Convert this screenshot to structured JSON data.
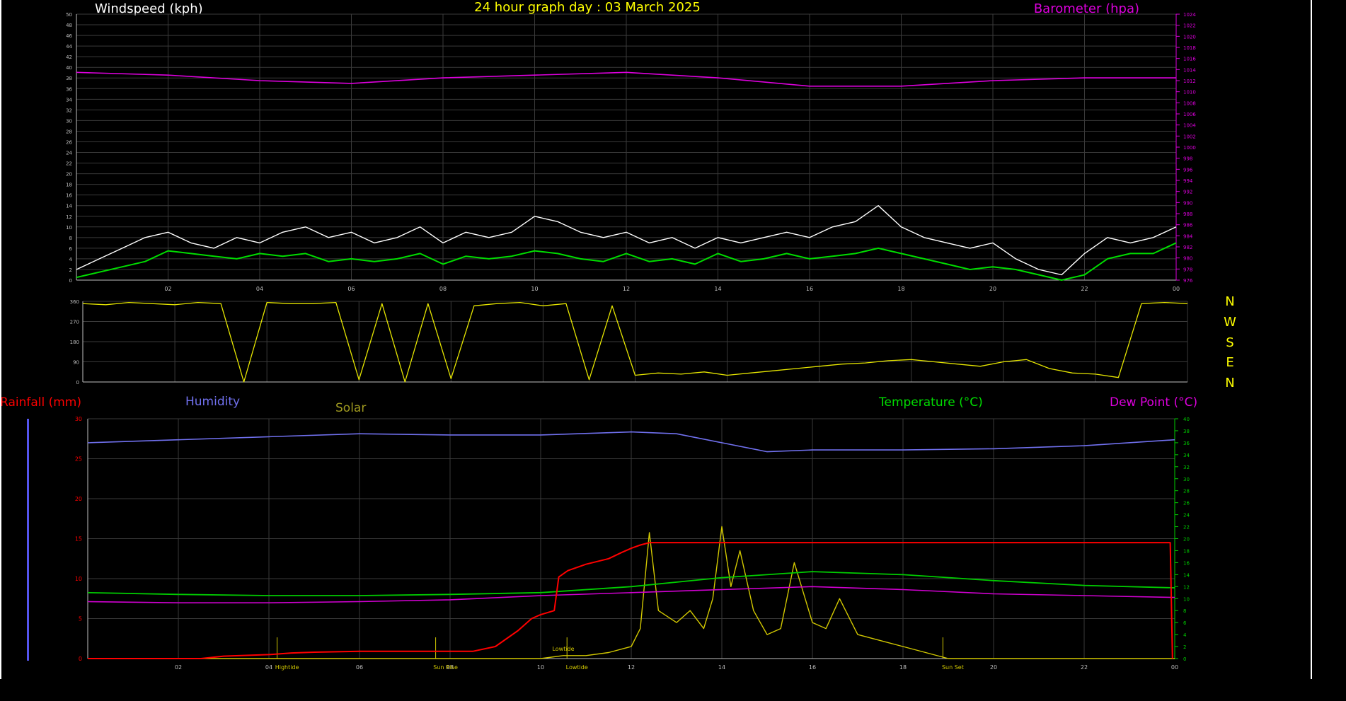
{
  "header": {
    "windspeed_title": "Windspeed (kph)",
    "chart_title": "24 hour graph day : 03 March 2025",
    "barometer_title": "Barometer (hpa)"
  },
  "lower_header": {
    "rainfall_title": "Rainfall (mm)",
    "humidity_title": "Humidity",
    "solar_title": "Solar",
    "temperature_title": "Temperature (°C)",
    "dewpoint_title": "Dew Point (°C)"
  },
  "direction_labels": [
    "N",
    "W",
    "S",
    "E",
    "N"
  ],
  "colors": {
    "background": "#000000",
    "grid": "#3a3a3a",
    "axis": "#bfbfbf",
    "windspeed": "#ffffff",
    "wind_avg": "#00dd00",
    "barometer": "#dd00dd",
    "direction": "#e6e600",
    "rainfall": "#ff0000",
    "humidity": "#7070ee",
    "solar": "#d2c800",
    "temperature": "#00cc00",
    "dewpoint": "#d000d0",
    "title_yellow": "#ffff00"
  },
  "chart_data": [
    {
      "type": "line",
      "name_key": "wind",
      "title": "Windspeed (kph)",
      "secondary_title": "Barometer (hpa)",
      "xlim": [
        0,
        24
      ],
      "x_ticks": [
        "02",
        "04",
        "06",
        "08",
        "10",
        "12",
        "14",
        "16",
        "18",
        "20",
        "22",
        "00"
      ],
      "y_left": {
        "min": 0,
        "max": 50,
        "step": 2
      },
      "y_right": {
        "min": 976,
        "max": 1024,
        "step": 2
      },
      "series": [
        {
          "name": "Windspeed",
          "axis": "left",
          "x": [
            0.0,
            0.5,
            1.0,
            1.5,
            2.0,
            2.5,
            3.0,
            3.5,
            4.0,
            4.5,
            5.0,
            5.5,
            6.0,
            6.5,
            7.0,
            7.5,
            8.0,
            8.5,
            9.0,
            9.5,
            10.0,
            10.5,
            11.0,
            11.5,
            12.0,
            12.5,
            13.0,
            13.5,
            14.0,
            14.5,
            15.0,
            15.5,
            16.0,
            16.5,
            17.0,
            17.5,
            18.0,
            18.5,
            19.0,
            19.5,
            20.0,
            20.5,
            21.0,
            21.5,
            22.0,
            22.5,
            23.0,
            23.5,
            24.0
          ],
          "y": [
            2,
            4,
            6,
            8,
            9,
            7,
            6,
            8,
            7,
            9,
            10,
            8,
            9,
            7,
            8,
            10,
            7,
            9,
            8,
            9,
            12,
            11,
            9,
            8,
            9,
            7,
            8,
            6,
            8,
            7,
            8,
            9,
            8,
            10,
            11,
            14,
            10,
            8,
            7,
            6,
            7,
            4,
            2,
            1,
            5,
            8,
            7,
            8,
            10
          ]
        },
        {
          "name": "Wind average",
          "axis": "left",
          "x": [
            0.0,
            0.5,
            1.0,
            1.5,
            2.0,
            2.5,
            3.0,
            3.5,
            4.0,
            4.5,
            5.0,
            5.5,
            6.0,
            6.5,
            7.0,
            7.5,
            8.0,
            8.5,
            9.0,
            9.5,
            10.0,
            10.5,
            11.0,
            11.5,
            12.0,
            12.5,
            13.0,
            13.5,
            14.0,
            14.5,
            15.0,
            15.5,
            16.0,
            16.5,
            17.0,
            17.5,
            18.0,
            18.5,
            19.0,
            19.5,
            20.0,
            20.5,
            21.0,
            21.5,
            22.0,
            22.5,
            23.0,
            23.5,
            24.0
          ],
          "y": [
            0.5,
            1.5,
            2.5,
            3.5,
            5.5,
            5,
            4.5,
            4,
            5,
            4.5,
            5,
            3.5,
            4,
            3.5,
            4,
            5,
            3,
            4.5,
            4,
            4.5,
            5.5,
            5,
            4,
            3.5,
            5,
            3.5,
            4,
            3,
            5,
            3.5,
            4,
            5,
            4,
            4.5,
            5,
            6,
            5,
            4,
            3,
            2,
            2.5,
            2,
            1,
            0,
            1,
            4,
            5,
            5,
            7
          ]
        },
        {
          "name": "Barometer",
          "axis": "right",
          "x": [
            0,
            2,
            4,
            6,
            8,
            10,
            12,
            14,
            16,
            18,
            20,
            22,
            24
          ],
          "y": [
            1013.5,
            1013,
            1012,
            1011.5,
            1012.5,
            1013,
            1013.5,
            1012.5,
            1011,
            1011,
            1012,
            1012.5,
            1012.5
          ]
        }
      ]
    },
    {
      "type": "line",
      "name_key": "direction",
      "xlim": [
        0,
        24
      ],
      "y_left": {
        "min": 0,
        "max": 360,
        "ticks": [
          0,
          90,
          180,
          270,
          360
        ]
      },
      "series": [
        {
          "name": "Wind direction",
          "x": [
            0.0,
            0.5,
            1.0,
            1.5,
            2.0,
            2.5,
            3.0,
            3.5,
            4.0,
            4.5,
            5.0,
            5.5,
            6.0,
            6.5,
            7.0,
            7.5,
            8.0,
            8.5,
            9.0,
            9.5,
            10.0,
            10.5,
            11.0,
            11.5,
            12.0,
            12.5,
            13.0,
            13.5,
            14.0,
            14.5,
            15.0,
            15.5,
            16.0,
            16.5,
            17.0,
            17.5,
            18.0,
            18.5,
            19.0,
            19.5,
            20.0,
            20.5,
            21.0,
            21.5,
            22.0,
            22.5,
            23.0,
            23.5,
            24.0
          ],
          "y": [
            350,
            345,
            355,
            350,
            345,
            355,
            350,
            0,
            355,
            350,
            350,
            355,
            10,
            350,
            0,
            350,
            15,
            340,
            350,
            355,
            340,
            350,
            10,
            340,
            30,
            40,
            35,
            45,
            30,
            40,
            50,
            60,
            70,
            80,
            85,
            95,
            100,
            90,
            80,
            70,
            90,
            100,
            60,
            40,
            35,
            20,
            350,
            355,
            350
          ]
        }
      ]
    },
    {
      "type": "line",
      "name_key": "atmos",
      "x_ticks": [
        "02",
        "04",
        "06",
        "08",
        "10",
        "12",
        "14",
        "16",
        "18",
        "20",
        "22",
        "00"
      ],
      "annotations": [
        {
          "label": "Hightide",
          "x": 4.4
        },
        {
          "label": "Sun Rise",
          "x": 7.9
        },
        {
          "label": "Lowtide",
          "x": 10.8
        },
        {
          "label": "Lowtide",
          "x": 10.5,
          "y": 0.8
        },
        {
          "label": "Sun Set",
          "x": 19.1
        }
      ],
      "xlim": [
        0,
        24
      ],
      "y_left": {
        "min": 0,
        "max": 30,
        "ticks": [
          0,
          5,
          10,
          15,
          20,
          25,
          30
        ]
      },
      "y_right": {
        "min": 0,
        "max": 40,
        "step": 2
      },
      "series": [
        {
          "name": "Rainfall",
          "axis": "left",
          "x": [
            0,
            2.5,
            3.0,
            4.0,
            4.5,
            5.0,
            6.0,
            7.0,
            8.0,
            8.5,
            9.0,
            9.5,
            9.8,
            10.0,
            10.3,
            10.4,
            10.6,
            11.0,
            11.5,
            11.8,
            12.0,
            12.2,
            12.4,
            14,
            16,
            18,
            20,
            22,
            23.9,
            23.95
          ],
          "y": [
            0,
            0,
            0.3,
            0.5,
            0.7,
            0.8,
            0.9,
            0.9,
            0.9,
            0.9,
            1.5,
            3.5,
            5,
            5.5,
            6,
            10.2,
            11,
            11.8,
            12.5,
            13.3,
            13.8,
            14.2,
            14.5,
            14.5,
            14.5,
            14.5,
            14.5,
            14.5,
            14.5,
            0
          ]
        },
        {
          "name": "Humidity",
          "axis": "right",
          "x": [
            0,
            2,
            4,
            6,
            8,
            10,
            12,
            13,
            14,
            15,
            16,
            18,
            20,
            22,
            24
          ],
          "y": [
            36,
            36.5,
            37,
            37.5,
            37.3,
            37.3,
            37.8,
            37.5,
            36,
            34.5,
            34.8,
            34.8,
            35,
            35.5,
            36.5
          ]
        },
        {
          "name": "Solar",
          "axis": "right",
          "x": [
            0,
            1,
            2,
            3,
            4,
            5,
            6,
            7,
            8,
            9,
            10,
            10.5,
            11,
            11.5,
            12,
            12.2,
            12.4,
            12.6,
            13,
            13.3,
            13.6,
            13.8,
            14,
            14.2,
            14.4,
            14.7,
            15,
            15.3,
            15.6,
            16,
            16.3,
            16.6,
            17,
            17.5,
            18,
            18.5,
            19,
            20,
            21,
            22,
            23,
            24
          ],
          "y": [
            0,
            0,
            0,
            0,
            0,
            0,
            0,
            0,
            0,
            0,
            0,
            0.5,
            0.5,
            1,
            2,
            5,
            21,
            8,
            6,
            8,
            5,
            10,
            22,
            12,
            18,
            8,
            4,
            5,
            16,
            6,
            5,
            10,
            4,
            3,
            2,
            1,
            0,
            0,
            0,
            0,
            0,
            0
          ]
        },
        {
          "name": "Temperature",
          "axis": "right",
          "x": [
            0,
            2,
            4,
            6,
            8,
            10,
            12,
            14,
            16,
            18,
            20,
            22,
            24
          ],
          "y": [
            11,
            10.7,
            10.5,
            10.5,
            10.7,
            11,
            12,
            13.5,
            14.5,
            14,
            13,
            12.2,
            11.8
          ]
        },
        {
          "name": "Dew Point",
          "axis": "right",
          "x": [
            0,
            2,
            4,
            6,
            8,
            10,
            12,
            14,
            16,
            18,
            20,
            22,
            24
          ],
          "y": [
            9.5,
            9.3,
            9.3,
            9.5,
            9.8,
            10.5,
            11,
            11.5,
            12,
            11.5,
            10.8,
            10.5,
            10.2
          ]
        }
      ]
    }
  ]
}
